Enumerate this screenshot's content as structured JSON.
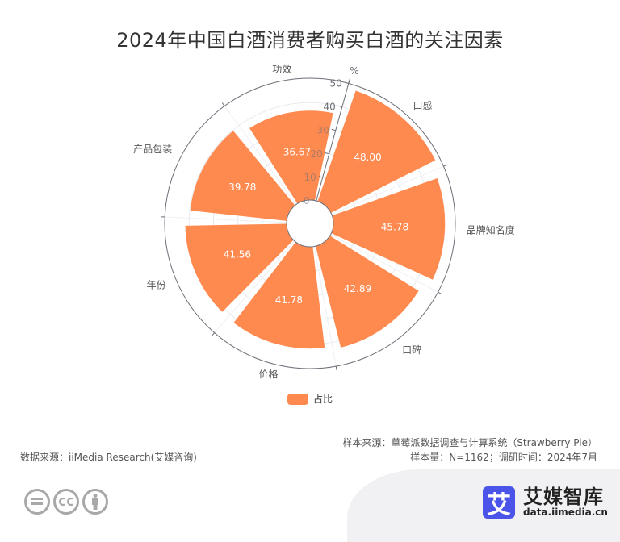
{
  "title": "2024年中国白酒消费者购买白酒的关注因素",
  "chart_data": {
    "type": "bar",
    "subtype": "polar-bar",
    "title": "2024年中国白酒消费者购买白酒的关注因素",
    "categories": [
      "口感",
      "品牌知名度",
      "口碑",
      "价格",
      "年份",
      "产品包装",
      "功效"
    ],
    "series": [
      {
        "name": "占比",
        "values": [
          48.0,
          45.78,
          42.89,
          41.78,
          41.56,
          39.78,
          36.67
        ]
      }
    ],
    "value_labels": [
      "48.00",
      "45.78",
      "42.89",
      "41.78",
      "41.56",
      "39.78",
      "36.67"
    ],
    "radial_axis": {
      "name": "%",
      "min": 0,
      "max": 50,
      "ticks": [
        0,
        10,
        20,
        30,
        40,
        50
      ]
    },
    "legend": {
      "position": "bottom",
      "entries": [
        "占比"
      ]
    },
    "bar_color": "#FF8A50",
    "grid": true
  },
  "legend": {
    "label": "占比",
    "color": "#FF8A50"
  },
  "notes": {
    "sample_source": "样本来源：草莓派数据调查与计算系统（Strawberry Pie）",
    "sample_size": "样本量：N=1162；调研时间：2024年7月",
    "data_source": "数据来源：iiMedia Research(艾媒咨询)"
  },
  "brand": {
    "logo_char": "艾",
    "name": "艾媒智库",
    "url": "data.iimedia.cn",
    "color": "#4a54e8"
  },
  "license_icons": [
    "equals-icon",
    "cc-icon",
    "person-icon"
  ]
}
